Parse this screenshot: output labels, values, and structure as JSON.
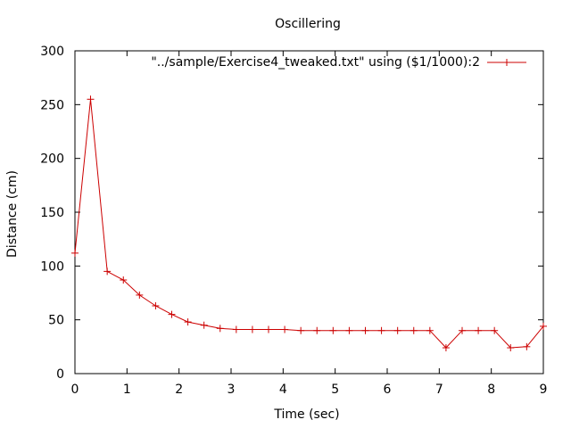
{
  "chart_data": {
    "type": "line",
    "title": "Oscillering",
    "xlabel": "Time (sec)",
    "ylabel": "Distance (cm)",
    "xlim": [
      0,
      9
    ],
    "ylim": [
      0,
      300
    ],
    "xticks": [
      0,
      1,
      2,
      3,
      4,
      5,
      6,
      7,
      8,
      9
    ],
    "yticks": [
      0,
      50,
      100,
      150,
      200,
      250,
      300
    ],
    "grid": false,
    "legend_position": "top-right",
    "series": [
      {
        "name": "\"../sample/Exercise4_tweaked.txt\" using ($1/1000):2",
        "color": "#cc0000",
        "marker": "plus",
        "x": [
          0,
          0.3,
          0.62,
          0.93,
          1.24,
          1.55,
          1.86,
          2.17,
          2.48,
          2.79,
          3.1,
          3.41,
          3.72,
          4.03,
          4.34,
          4.65,
          4.96,
          5.27,
          5.58,
          5.89,
          6.2,
          6.51,
          6.82,
          7.13,
          7.44,
          7.75,
          8.06,
          8.37,
          8.68,
          9.0
        ],
        "values": [
          112,
          255,
          95,
          87,
          73,
          63,
          55,
          48,
          45,
          42,
          41,
          41,
          41,
          41,
          40,
          40,
          40,
          40,
          40,
          40,
          40,
          40,
          40,
          24,
          40,
          40,
          40,
          24,
          25,
          44
        ]
      }
    ]
  }
}
